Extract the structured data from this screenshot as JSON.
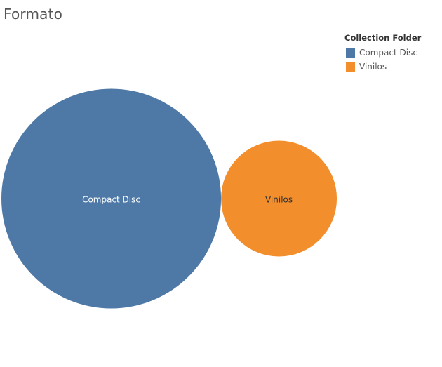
{
  "title": "Formato",
  "legend": {
    "title": "Collection Folder",
    "items": [
      {
        "label": "Compact Disc",
        "color": "#4E79A7"
      },
      {
        "label": "Vinilos",
        "color": "#F28E2B"
      }
    ]
  },
  "chart_data": {
    "type": "packed-bubble",
    "title": "Formato",
    "legend_title": "Collection Folder",
    "legend_position": "top-right",
    "series": [
      {
        "name": "Compact Disc",
        "value": 3.6,
        "color": "#4E79A7",
        "label": "Compact Disc",
        "label_color": "#ffffff"
      },
      {
        "name": "Vinilos",
        "value": 1.0,
        "color": "#F28E2B",
        "label": "Vinilos",
        "label_color": "#333333"
      }
    ]
  }
}
